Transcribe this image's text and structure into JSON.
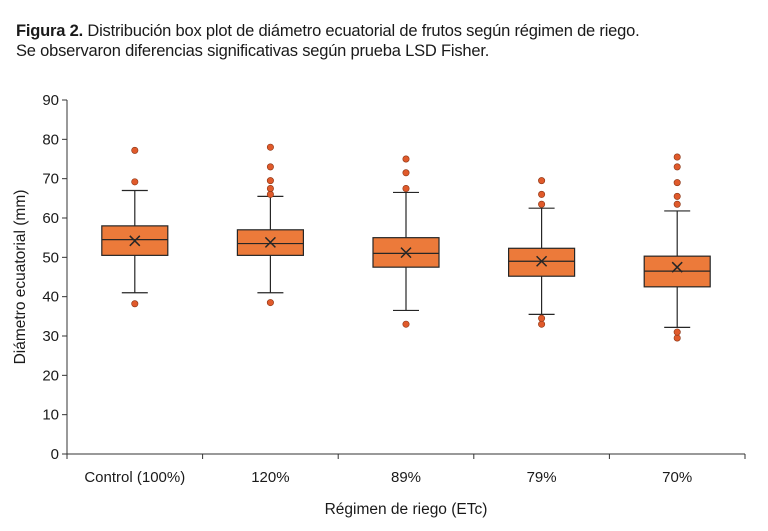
{
  "caption": {
    "label": "Figura 2.",
    "line1": "Distribución box plot de diámetro ecuatorial de frutos según régimen de riego.",
    "line2": "Se observaron diferencias significativas según prueba LSD Fisher."
  },
  "chart_data": {
    "type": "boxplot",
    "xlabel": "Régimen de riego (ETc)",
    "ylabel": "Diámetro ecuatorial (mm)",
    "ylim": [
      0,
      90
    ],
    "yticks": [
      0,
      10,
      20,
      30,
      40,
      50,
      60,
      70,
      80,
      90
    ],
    "grid": false,
    "categories": [
      "Control (100%)",
      "120%",
      "89%",
      "79%",
      "70%"
    ],
    "boxes": [
      {
        "q1": 50.5,
        "median": 54.5,
        "q3": 58,
        "mean": 54.2,
        "whisker_low": 41,
        "whisker_high": 67,
        "outliers": [
          38.2,
          69.2,
          77.2
        ]
      },
      {
        "q1": 50.5,
        "median": 53.5,
        "q3": 57,
        "mean": 53.8,
        "whisker_low": 41,
        "whisker_high": 65.5,
        "outliers": [
          38.5,
          66,
          67.5,
          69.5,
          73,
          78
        ]
      },
      {
        "q1": 47.5,
        "median": 51,
        "q3": 55,
        "mean": 51.2,
        "whisker_low": 36.5,
        "whisker_high": 66.5,
        "outliers": [
          33,
          67.5,
          71.5,
          75
        ]
      },
      {
        "q1": 45.2,
        "median": 49,
        "q3": 52.3,
        "mean": 49,
        "whisker_low": 35.5,
        "whisker_high": 62.5,
        "outliers": [
          33,
          34.5,
          63.5,
          66,
          69.5
        ]
      },
      {
        "q1": 42.5,
        "median": 46.5,
        "q3": 50.3,
        "mean": 47.5,
        "whisker_low": 32.2,
        "whisker_high": 61.8,
        "outliers": [
          29.5,
          31,
          63.5,
          65.5,
          69,
          73,
          75.5
        ]
      }
    ],
    "colors": {
      "box_fill": "#ec7a3a",
      "box_stroke": "#262626",
      "outlier": "#e05a2b"
    }
  }
}
